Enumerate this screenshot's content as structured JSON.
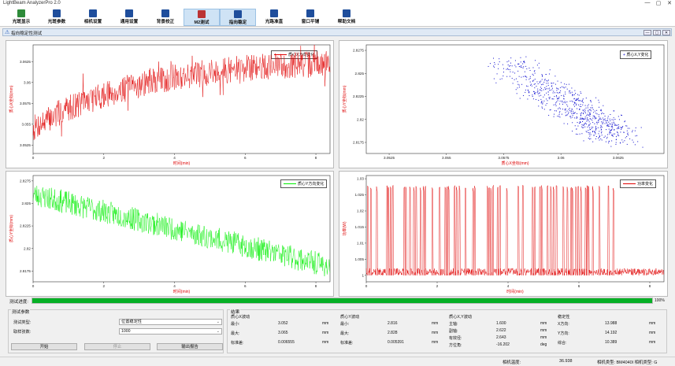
{
  "app": {
    "title": "LightBeam AnalyzerPro 2.0",
    "window_controls": [
      "—",
      "▢",
      "✕"
    ]
  },
  "toolbar": [
    {
      "label": "光斑显示",
      "icon": "beam-display-icon",
      "active": false
    },
    {
      "label": "光斑参数",
      "icon": "beam-params-icon",
      "active": false
    },
    {
      "label": "相机设置",
      "icon": "camera-icon",
      "active": false
    },
    {
      "label": "通用设置",
      "icon": "grid-settings-icon",
      "active": false
    },
    {
      "label": "背景校正",
      "icon": "background-correct-icon",
      "active": false
    },
    {
      "label": "M2测试",
      "icon": "m2-test-icon",
      "active": true
    },
    {
      "label": "指向稳定",
      "icon": "pointing-icon",
      "active": true
    },
    {
      "label": "光路准直",
      "icon": "collimation-icon",
      "active": false
    },
    {
      "label": "窗口平铺",
      "icon": "tile-window-icon",
      "active": false
    },
    {
      "label": "帮助文档",
      "icon": "help-doc-icon",
      "active": false
    }
  ],
  "subwindow": {
    "title": "指向稳定性测试",
    "controls": [
      "—",
      "▢",
      "✕"
    ]
  },
  "charts": {
    "x_label": "时间(min)",
    "xy": {
      "ylabel": "质心X坐标(mm)",
      "legend": "质心X方向变化",
      "yticks": [
        "3.0625",
        "3.06",
        "3.0575",
        "3.055",
        "3.0525"
      ],
      "xticks": [
        "0",
        "2",
        "4",
        "6",
        "8"
      ]
    },
    "scatter": {
      "ylabel": "质心Y坐标(mm)",
      "xlabel": "质心X坐标(mm)",
      "legend": "质心X,Y变化",
      "yticks": [
        "2.8275",
        "2.825",
        "2.8225",
        "2.82",
        "2.8175"
      ],
      "xticks": [
        "3.0525",
        "3.055",
        "3.0575",
        "3.06",
        "3.0625"
      ]
    },
    "yt": {
      "ylabel": "质心Y坐标(mm)",
      "legend": "质心Y方向变化",
      "yticks": [
        "2.8275",
        "2.825",
        "2.8225",
        "2.82",
        "2.8175"
      ],
      "xticks": [
        "0",
        "2",
        "4",
        "6",
        "8"
      ]
    },
    "power": {
      "ylabel": "功率(W)",
      "legend": "功率变化",
      "yticks": [
        "1.03",
        "1.025",
        "1.02",
        "1.015",
        "1.01",
        "1.005",
        "1"
      ],
      "xticks": [
        "0",
        "2",
        "4",
        "6",
        "8"
      ]
    }
  },
  "chart_data": [
    {
      "type": "line",
      "title": "",
      "xlabel": "时间(min)",
      "ylabel": "质心X坐标(mm)",
      "xlim": [
        0,
        8.4
      ],
      "ylim": [
        3.0515,
        3.0645
      ],
      "series": [
        {
          "name": "质心X方向变化",
          "color": "#e00000",
          "trend_x": [
            0,
            1,
            2,
            3,
            4,
            5,
            6,
            7,
            8,
            8.4
          ],
          "trend_y": [
            3.0545,
            3.057,
            3.0585,
            3.0597,
            3.0606,
            3.0612,
            3.0617,
            3.062,
            3.0622,
            3.0622
          ]
        }
      ]
    },
    {
      "type": "scatter",
      "title": "",
      "xlabel": "质心X坐标(mm)",
      "ylabel": "质心Y坐标(mm)",
      "xlim": [
        3.0515,
        3.0645
      ],
      "ylim": [
        2.8163,
        2.8281
      ],
      "series": [
        {
          "name": "质心X,Y变化",
          "color": "#1010d0",
          "center_start": [
            3.0575,
            2.8262
          ],
          "center_end": [
            3.0625,
            2.818
          ]
        }
      ]
    },
    {
      "type": "line",
      "title": "",
      "xlabel": "时间(min)",
      "ylabel": "质心Y坐标(mm)",
      "xlim": [
        0,
        8.4
      ],
      "ylim": [
        2.8163,
        2.8281
      ],
      "series": [
        {
          "name": "质心Y方向变化",
          "color": "#00ee00",
          "trend_x": [
            0,
            8.4
          ],
          "trend_y": [
            2.826,
            2.818
          ]
        }
      ]
    },
    {
      "type": "line",
      "title": "",
      "xlabel": "时间(min)",
      "ylabel": "功率(W)",
      "xlim": [
        0,
        8.4
      ],
      "ylim": [
        0.998,
        1.031
      ],
      "series": [
        {
          "name": "功率变化",
          "color": "#e00000",
          "baseline": 1.0,
          "spike_top": 1.028
        }
      ]
    }
  ],
  "progress": {
    "label": "测试进度:",
    "value": 1.0,
    "text": "100%"
  },
  "params": {
    "title": "测试参数",
    "type_label": "测试类型:",
    "type_value": "位置稳定性",
    "rate_label": "取样张数:",
    "rate_value": "1000",
    "start": "开始",
    "stop": "停止",
    "export": "输出报告"
  },
  "results": {
    "title": "结果",
    "x": {
      "title": "质心X波动",
      "rows": [
        [
          "最小:",
          "3.052",
          "mm"
        ],
        [
          "最大:",
          "3.065",
          "mm"
        ],
        [
          "标准差:",
          "0.006555",
          "mm"
        ]
      ]
    },
    "y": {
      "title": "质心Y波动",
      "rows": [
        [
          "最小:",
          "2.816",
          "mm"
        ],
        [
          "最大:",
          "2.828",
          "mm"
        ],
        [
          "标准差:",
          "0.005391",
          "mm"
        ]
      ]
    },
    "xy": {
      "title": "质心X,Y波动",
      "rows": [
        [
          "主轴:",
          "1.600",
          "mm"
        ],
        [
          "副轴:",
          "2.622",
          "mm"
        ],
        [
          "有效径:",
          "2.643",
          "mm"
        ],
        [
          "方位角:",
          "-16.202",
          "deg"
        ]
      ]
    },
    "pointing": {
      "title": "稳定性",
      "rows": [
        [
          "X方向:",
          "13.988",
          "mm"
        ],
        [
          "Y方向:",
          "14.192",
          "mm"
        ],
        [
          "综合:",
          "10.389",
          "mm"
        ]
      ]
    }
  },
  "status": {
    "temp_label": "相机温度:",
    "temp_value": "36.938",
    "camera": "相机类型: BM4040I 相机类型: G"
  }
}
